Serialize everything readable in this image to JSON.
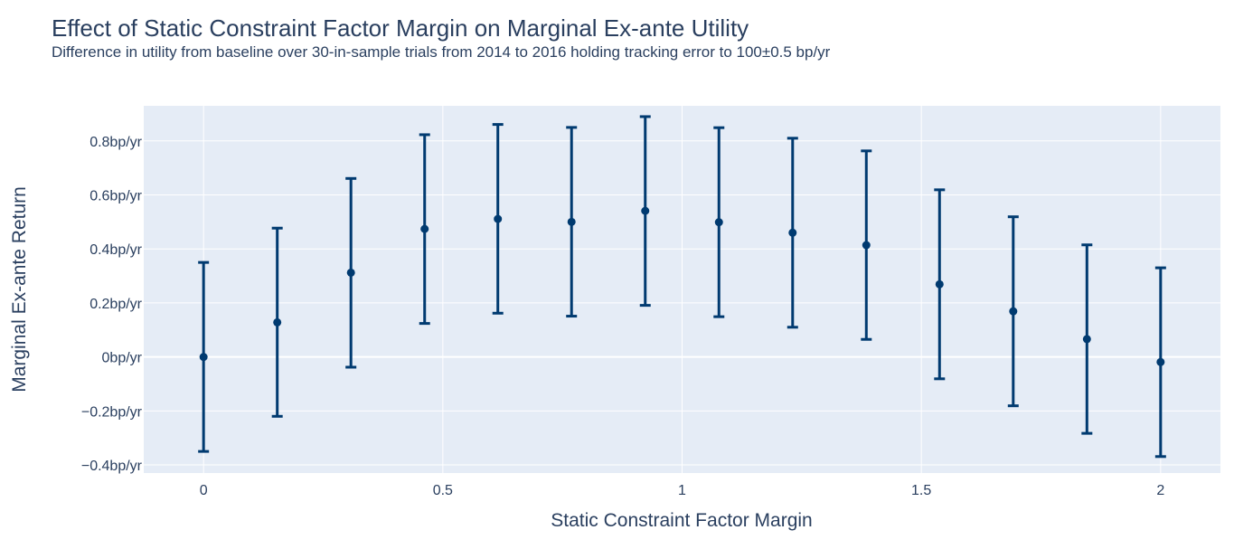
{
  "chart_data": {
    "type": "scatter",
    "title": "Effect of Static Constraint Factor Margin on Marginal Ex-ante Utility",
    "subtitle": "Difference in utility from baseline over 30-in-sample trials from 2014 to 2016 holding tracking error to 100±0.5 bp/yr",
    "xlabel": "Static Constraint Factor Margin",
    "ylabel": "Marginal Ex-ante Return",
    "xlim": [
      -0.125,
      2.125
    ],
    "ylim": [
      -0.43,
      0.93
    ],
    "x_ticks": [
      {
        "value": 0,
        "label": "0"
      },
      {
        "value": 0.5,
        "label": "0.5"
      },
      {
        "value": 1,
        "label": "1"
      },
      {
        "value": 1.5,
        "label": "1.5"
      },
      {
        "value": 2,
        "label": "2"
      }
    ],
    "y_ticks": [
      {
        "value": 0.8,
        "label": "0.8bp/yr"
      },
      {
        "value": 0.6,
        "label": "0.6bp/yr"
      },
      {
        "value": 0.4,
        "label": "0.4bp/yr"
      },
      {
        "value": 0.2,
        "label": "0.2bp/yr"
      },
      {
        "value": 0,
        "label": "0bp/yr"
      },
      {
        "value": -0.2,
        "label": "−0.2bp/yr"
      },
      {
        "value": -0.4,
        "label": "−0.4bp/yr"
      }
    ],
    "grid": true,
    "series": [
      {
        "marker_color": "#003a70",
        "points": [
          {
            "x": 0.0,
            "y": 0.0,
            "lo": -0.35,
            "hi": 0.35
          },
          {
            "x": 0.154,
            "y": 0.128,
            "lo": -0.22,
            "hi": 0.477
          },
          {
            "x": 0.308,
            "y": 0.312,
            "lo": -0.038,
            "hi": 0.661
          },
          {
            "x": 0.462,
            "y": 0.474,
            "lo": 0.124,
            "hi": 0.823
          },
          {
            "x": 0.615,
            "y": 0.511,
            "lo": 0.162,
            "hi": 0.861
          },
          {
            "x": 0.769,
            "y": 0.5,
            "lo": 0.151,
            "hi": 0.85
          },
          {
            "x": 0.923,
            "y": 0.541,
            "lo": 0.191,
            "hi": 0.89
          },
          {
            "x": 1.077,
            "y": 0.499,
            "lo": 0.149,
            "hi": 0.849
          },
          {
            "x": 1.231,
            "y": 0.46,
            "lo": 0.11,
            "hi": 0.81
          },
          {
            "x": 1.385,
            "y": 0.414,
            "lo": 0.065,
            "hi": 0.763
          },
          {
            "x": 1.538,
            "y": 0.269,
            "lo": -0.081,
            "hi": 0.619
          },
          {
            "x": 1.692,
            "y": 0.169,
            "lo": -0.181,
            "hi": 0.519
          },
          {
            "x": 1.846,
            "y": 0.066,
            "lo": -0.283,
            "hi": 0.415
          },
          {
            "x": 2.0,
            "y": -0.019,
            "lo": -0.369,
            "hi": 0.33
          }
        ]
      }
    ]
  },
  "colors": {
    "plot_background": "#e5ecf6",
    "grid": "#ffffff",
    "marker": "#003a70",
    "text": "#2a3f5f"
  }
}
